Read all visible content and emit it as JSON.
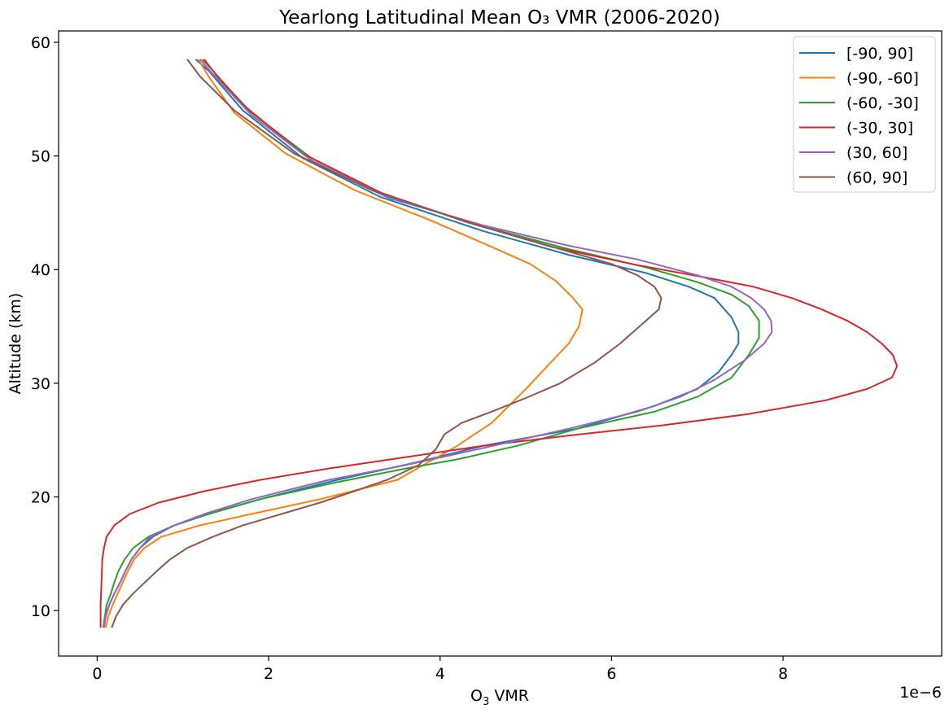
{
  "chart_data": {
    "type": "line",
    "title": "Yearlong Latitudinal Mean O₃ VMR (2006-2020)",
    "xlabel_base": "O",
    "xlabel_sub": "3",
    "xlabel_rest": " VMR",
    "ylabel": "Altitude (km)",
    "x_offset_label": "1e−6",
    "x_scale": 1e-06,
    "xlim": [
      -0.45,
      9.85
    ],
    "ylim": [
      6.0,
      61.0
    ],
    "x_ticks": [
      0,
      2,
      4,
      6,
      8
    ],
    "y_ticks": [
      10,
      20,
      30,
      40,
      50,
      60
    ],
    "grid": false,
    "legend_position": "top-right",
    "series": [
      {
        "name": "[-90, 90]",
        "color": "#1f77b4",
        "points": [
          [
            0.08,
            8.5
          ],
          [
            0.1,
            9.5
          ],
          [
            0.14,
            10.5
          ],
          [
            0.2,
            11.5
          ],
          [
            0.27,
            12.5
          ],
          [
            0.33,
            13.5
          ],
          [
            0.4,
            14.5
          ],
          [
            0.5,
            15.5
          ],
          [
            0.65,
            16.5
          ],
          [
            0.9,
            17.5
          ],
          [
            1.3,
            18.5
          ],
          [
            1.9,
            19.8
          ],
          [
            2.8,
            21.5
          ],
          [
            3.7,
            23.0
          ],
          [
            4.5,
            24.5
          ],
          [
            5.6,
            26.0
          ],
          [
            6.5,
            28.0
          ],
          [
            7.0,
            29.5
          ],
          [
            7.25,
            31.0
          ],
          [
            7.4,
            32.5
          ],
          [
            7.48,
            33.5
          ],
          [
            7.48,
            34.5
          ],
          [
            7.4,
            35.8
          ],
          [
            7.2,
            37.5
          ],
          [
            6.9,
            38.5
          ],
          [
            6.4,
            39.7
          ],
          [
            5.5,
            41.3
          ],
          [
            4.5,
            43.4
          ],
          [
            3.3,
            46.4
          ],
          [
            2.4,
            49.8
          ],
          [
            1.7,
            54.0
          ],
          [
            1.3,
            57.5
          ],
          [
            1.15,
            58.5
          ]
        ]
      },
      {
        "name": "(-90, -60]",
        "color": "#ff7f0e",
        "points": [
          [
            0.1,
            8.5
          ],
          [
            0.13,
            9.5
          ],
          [
            0.18,
            10.5
          ],
          [
            0.24,
            11.5
          ],
          [
            0.3,
            12.5
          ],
          [
            0.36,
            13.5
          ],
          [
            0.43,
            14.5
          ],
          [
            0.55,
            15.5
          ],
          [
            0.75,
            16.5
          ],
          [
            1.2,
            17.5
          ],
          [
            1.8,
            18.5
          ],
          [
            2.6,
            19.8
          ],
          [
            3.5,
            21.5
          ],
          [
            4.2,
            24.5
          ],
          [
            4.6,
            26.5
          ],
          [
            5.0,
            29.5
          ],
          [
            5.25,
            31.5
          ],
          [
            5.5,
            33.5
          ],
          [
            5.62,
            35.0
          ],
          [
            5.66,
            36.5
          ],
          [
            5.55,
            37.5
          ],
          [
            5.35,
            39.0
          ],
          [
            5.05,
            40.5
          ],
          [
            4.6,
            42.0
          ],
          [
            3.9,
            44.3
          ],
          [
            3.0,
            47.0
          ],
          [
            2.2,
            50.2
          ],
          [
            1.6,
            53.8
          ],
          [
            1.3,
            57.0
          ],
          [
            1.18,
            58.5
          ]
        ]
      },
      {
        "name": "(-60, -30]",
        "color": "#2ca02c",
        "points": [
          [
            0.07,
            8.5
          ],
          [
            0.09,
            9.5
          ],
          [
            0.11,
            10.5
          ],
          [
            0.16,
            11.5
          ],
          [
            0.2,
            12.5
          ],
          [
            0.25,
            13.5
          ],
          [
            0.32,
            14.5
          ],
          [
            0.42,
            15.5
          ],
          [
            0.6,
            16.5
          ],
          [
            0.9,
            17.5
          ],
          [
            1.3,
            18.5
          ],
          [
            1.9,
            19.8
          ],
          [
            2.8,
            21.3
          ],
          [
            3.6,
            22.5
          ],
          [
            4.2,
            23.3
          ],
          [
            4.9,
            24.5
          ],
          [
            5.6,
            26.0
          ],
          [
            6.5,
            27.5
          ],
          [
            7.0,
            28.8
          ],
          [
            7.4,
            30.5
          ],
          [
            7.6,
            32.5
          ],
          [
            7.72,
            34.0
          ],
          [
            7.72,
            35.5
          ],
          [
            7.6,
            36.8
          ],
          [
            7.4,
            37.8
          ],
          [
            7.0,
            38.9
          ],
          [
            6.4,
            40.2
          ],
          [
            5.5,
            41.8
          ],
          [
            4.5,
            43.8
          ],
          [
            3.4,
            46.4
          ],
          [
            2.5,
            49.8
          ],
          [
            1.8,
            53.8
          ],
          [
            1.4,
            57.0
          ],
          [
            1.25,
            58.5
          ]
        ]
      },
      {
        "name": "(-30, 30]",
        "color": "#d62728",
        "points": [
          [
            0.04,
            8.5
          ],
          [
            0.04,
            10.5
          ],
          [
            0.05,
            12.5
          ],
          [
            0.06,
            14.5
          ],
          [
            0.08,
            15.5
          ],
          [
            0.11,
            16.5
          ],
          [
            0.2,
            17.5
          ],
          [
            0.38,
            18.5
          ],
          [
            0.72,
            19.5
          ],
          [
            1.25,
            20.5
          ],
          [
            1.9,
            21.5
          ],
          [
            2.7,
            22.5
          ],
          [
            3.6,
            23.5
          ],
          [
            4.5,
            24.5
          ],
          [
            5.5,
            25.4
          ],
          [
            6.6,
            26.3
          ],
          [
            7.6,
            27.3
          ],
          [
            8.5,
            28.5
          ],
          [
            8.98,
            29.5
          ],
          [
            9.27,
            30.5
          ],
          [
            9.33,
            31.5
          ],
          [
            9.28,
            32.5
          ],
          [
            9.15,
            33.5
          ],
          [
            8.98,
            34.5
          ],
          [
            8.75,
            35.5
          ],
          [
            8.45,
            36.5
          ],
          [
            8.1,
            37.5
          ],
          [
            7.65,
            38.5
          ],
          [
            7.1,
            39.3
          ],
          [
            6.3,
            40.4
          ],
          [
            5.3,
            42.0
          ],
          [
            4.3,
            44.2
          ],
          [
            3.3,
            46.8
          ],
          [
            2.4,
            50.2
          ],
          [
            1.7,
            54.5
          ],
          [
            1.35,
            57.5
          ],
          [
            1.23,
            58.5
          ]
        ]
      },
      {
        "name": "(30, 60]",
        "color": "#9467bd",
        "points": [
          [
            0.08,
            8.5
          ],
          [
            0.1,
            9.5
          ],
          [
            0.14,
            10.5
          ],
          [
            0.2,
            11.5
          ],
          [
            0.27,
            12.5
          ],
          [
            0.33,
            13.5
          ],
          [
            0.4,
            14.5
          ],
          [
            0.5,
            15.5
          ],
          [
            0.62,
            16.5
          ],
          [
            0.9,
            17.5
          ],
          [
            1.25,
            18.5
          ],
          [
            1.8,
            19.8
          ],
          [
            2.7,
            21.5
          ],
          [
            3.6,
            22.8
          ],
          [
            4.5,
            24.3
          ],
          [
            5.5,
            26.0
          ],
          [
            6.3,
            27.5
          ],
          [
            6.8,
            28.8
          ],
          [
            7.2,
            30.3
          ],
          [
            7.55,
            32.0
          ],
          [
            7.78,
            33.5
          ],
          [
            7.87,
            34.5
          ],
          [
            7.86,
            35.5
          ],
          [
            7.78,
            36.5
          ],
          [
            7.63,
            37.5
          ],
          [
            7.4,
            38.5
          ],
          [
            7.0,
            39.5
          ],
          [
            6.3,
            40.9
          ],
          [
            5.5,
            42.1
          ],
          [
            4.5,
            43.9
          ],
          [
            3.4,
            46.3
          ],
          [
            2.5,
            49.6
          ],
          [
            1.8,
            53.6
          ],
          [
            1.35,
            57.2
          ],
          [
            1.2,
            58.5
          ]
        ]
      },
      {
        "name": "(60, 90]",
        "color": "#8c564b",
        "points": [
          [
            0.17,
            8.5
          ],
          [
            0.22,
            9.5
          ],
          [
            0.3,
            10.5
          ],
          [
            0.42,
            11.5
          ],
          [
            0.56,
            12.5
          ],
          [
            0.7,
            13.5
          ],
          [
            0.85,
            14.5
          ],
          [
            1.05,
            15.5
          ],
          [
            1.35,
            16.5
          ],
          [
            1.7,
            17.5
          ],
          [
            2.15,
            18.5
          ],
          [
            2.6,
            19.5
          ],
          [
            3.0,
            20.5
          ],
          [
            3.38,
            21.5
          ],
          [
            3.75,
            22.8
          ],
          [
            3.95,
            24.2
          ],
          [
            4.05,
            25.5
          ],
          [
            4.25,
            26.5
          ],
          [
            4.6,
            27.5
          ],
          [
            5.0,
            28.7
          ],
          [
            5.4,
            30.0
          ],
          [
            5.8,
            31.8
          ],
          [
            6.1,
            33.5
          ],
          [
            6.25,
            34.5
          ],
          [
            6.4,
            35.5
          ],
          [
            6.55,
            36.5
          ],
          [
            6.58,
            37.5
          ],
          [
            6.5,
            38.5
          ],
          [
            6.3,
            39.5
          ],
          [
            6.0,
            40.5
          ],
          [
            5.4,
            41.8
          ],
          [
            4.4,
            44.0
          ],
          [
            3.2,
            47.0
          ],
          [
            2.3,
            50.2
          ],
          [
            1.6,
            54.0
          ],
          [
            1.2,
            57.0
          ],
          [
            1.05,
            58.5
          ]
        ]
      }
    ]
  }
}
